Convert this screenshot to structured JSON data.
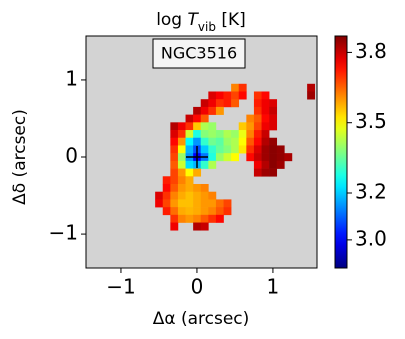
{
  "chart_data": {
    "type": "heatmap",
    "title": [
      "log ",
      "T",
      "vib",
      " [K]"
    ],
    "annotation": "NGC3516",
    "xlabel": "Δα (arcsec)",
    "ylabel": "Δδ (arcsec)",
    "xlim": [
      -1.46,
      1.58
    ],
    "ylim": [
      -1.44,
      1.57
    ],
    "xticks": [
      {
        "value": -1,
        "label": "−1"
      },
      0,
      1
    ],
    "yticks": [
      {
        "value": -1,
        "label": "−1"
      },
      0,
      1
    ],
    "colormap": "jet",
    "background": "#d3d3d3",
    "clim": [
      2.88,
      3.87
    ],
    "colorbar_ticks": [
      {
        "value": 3.0,
        "label": "3.0"
      },
      3.2,
      3.5,
      3.8
    ],
    "x": [
      -0.5,
      -0.4,
      -0.3,
      -0.2,
      -0.1,
      0,
      0.1,
      0.2,
      0.3,
      0.4,
      0.5,
      0.6,
      0.7,
      0.8,
      0.9,
      1.0,
      1.1,
      1.2,
      1.3,
      1.4,
      1.5
    ],
    "y": [
      0.9,
      0.8,
      0.7,
      0.6,
      0.5,
      0.4,
      0.3,
      0.2,
      0.1,
      0.0,
      -0.1,
      -0.2,
      -0.3,
      -0.4,
      -0.5,
      -0.6,
      -0.7,
      -0.8,
      -0.9
    ],
    "z": [
      [
        null,
        null,
        null,
        null,
        null,
        null,
        null,
        null,
        null,
        null,
        3.62,
        3.7,
        null,
        null,
        null,
        null,
        null,
        null,
        null,
        null,
        3.82
      ],
      [
        null,
        null,
        null,
        null,
        null,
        null,
        null,
        3.78,
        3.75,
        3.72,
        3.68,
        3.74,
        null,
        3.7,
        3.74,
        null,
        null,
        null,
        null,
        null,
        3.84
      ],
      [
        null,
        null,
        null,
        null,
        null,
        null,
        3.8,
        3.76,
        3.7,
        3.72,
        3.66,
        null,
        null,
        3.72,
        3.76,
        3.78,
        null,
        null,
        null,
        null,
        null
      ],
      [
        null,
        null,
        null,
        null,
        null,
        3.82,
        3.76,
        3.7,
        3.6,
        null,
        null,
        null,
        null,
        3.7,
        3.76,
        3.8,
        null,
        null,
        null,
        null,
        null
      ],
      [
        null,
        null,
        null,
        null,
        3.8,
        3.74,
        3.66,
        null,
        null,
        null,
        null,
        null,
        3.62,
        3.66,
        3.74,
        3.78,
        null,
        null,
        null,
        null,
        null
      ],
      [
        null,
        null,
        3.82,
        3.76,
        3.7,
        3.55,
        3.42,
        3.4,
        null,
        null,
        null,
        3.55,
        3.6,
        3.68,
        3.76,
        3.78,
        null,
        null,
        null,
        null,
        null
      ],
      [
        null,
        null,
        3.78,
        3.7,
        3.45,
        3.28,
        3.38,
        3.4,
        3.38,
        3.42,
        3.4,
        3.48,
        3.62,
        3.72,
        3.8,
        null,
        null,
        null,
        null,
        null,
        null
      ],
      [
        null,
        null,
        3.74,
        3.6,
        3.25,
        3.15,
        3.3,
        3.36,
        3.34,
        3.4,
        3.42,
        3.5,
        3.66,
        3.74,
        3.82,
        3.85,
        null,
        null,
        null,
        null,
        null
      ],
      [
        null,
        null,
        3.7,
        3.5,
        3.18,
        3.08,
        3.2,
        3.3,
        3.35,
        3.38,
        3.42,
        3.52,
        3.7,
        3.78,
        3.84,
        3.86,
        3.85,
        null,
        null,
        null,
        null
      ],
      [
        null,
        null,
        3.68,
        3.4,
        3.15,
        3.0,
        3.12,
        3.28,
        3.4,
        3.45,
        3.5,
        null,
        3.74,
        3.8,
        3.84,
        3.86,
        3.85,
        3.83,
        null,
        null,
        null
      ],
      [
        null,
        null,
        3.66,
        3.45,
        3.22,
        3.18,
        3.3,
        3.42,
        null,
        null,
        null,
        null,
        null,
        3.76,
        3.82,
        3.86,
        3.84,
        null,
        null,
        null,
        null
      ],
      [
        null,
        null,
        3.68,
        3.6,
        3.5,
        3.58,
        null,
        null,
        null,
        null,
        null,
        null,
        null,
        3.8,
        3.84,
        3.85,
        null,
        null,
        null,
        null,
        null
      ],
      [
        null,
        3.72,
        3.68,
        3.62,
        3.58,
        null,
        null,
        null,
        null,
        null,
        null,
        null,
        null,
        null,
        null,
        null,
        null,
        null,
        null,
        null,
        null
      ],
      [
        null,
        3.74,
        3.66,
        3.6,
        3.58,
        3.6,
        3.62,
        null,
        null,
        null,
        null,
        null,
        null,
        null,
        null,
        null,
        null,
        null,
        null,
        null,
        null
      ],
      [
        3.78,
        3.7,
        3.62,
        3.58,
        3.56,
        3.58,
        3.6,
        3.62,
        null,
        null,
        null,
        null,
        null,
        null,
        null,
        null,
        null,
        null,
        null,
        null,
        null
      ],
      [
        3.76,
        3.68,
        3.6,
        3.56,
        3.56,
        3.58,
        3.6,
        3.6,
        3.64,
        3.68,
        null,
        null,
        null,
        null,
        null,
        null,
        null,
        null,
        null,
        null,
        null
      ],
      [
        null,
        3.72,
        3.64,
        3.58,
        3.57,
        3.58,
        3.6,
        3.62,
        3.66,
        3.7,
        null,
        null,
        null,
        null,
        null,
        null,
        null,
        null,
        null,
        null,
        null
      ],
      [
        null,
        null,
        3.7,
        3.62,
        3.6,
        3.62,
        3.66,
        3.7,
        3.74,
        null,
        null,
        null,
        null,
        null,
        null,
        null,
        null,
        null,
        null,
        null,
        null
      ],
      [
        null,
        null,
        3.76,
        null,
        null,
        3.82,
        3.8,
        null,
        null,
        null,
        null,
        null,
        null,
        null,
        null,
        null,
        null,
        null,
        null,
        null,
        null
      ]
    ]
  }
}
